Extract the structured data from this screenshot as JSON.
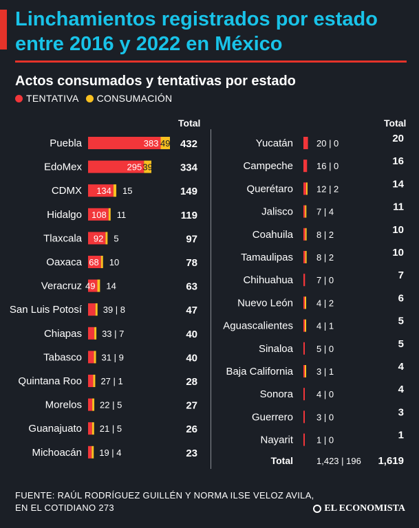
{
  "title": "Linchamientos registrados por estado entre 2016 y 2022 en México",
  "subtitle": "Actos consumados y tentativas por estado",
  "legend": {
    "tentativa": "TENTATIVA",
    "consumacion": "CONSUMACIÓN"
  },
  "colors": {
    "tentativa": "#f2363a",
    "consumacion": "#f9c020",
    "title": "#19c3e8",
    "background": "#1b1f26"
  },
  "total_header": "Total",
  "summary": {
    "label": "Total",
    "tentativa": "1,423",
    "consumacion": "196",
    "total": "1,619"
  },
  "source": {
    "line1": "FUENTE: RAÚL RODRÍGUEZ GUILLÉN Y NORMA ILSE VELOZ AVILA,",
    "line2": "EN  EL COTIDIANO 273"
  },
  "brand": "EL ECONOMISTA",
  "chart_data": {
    "type": "bar",
    "orientation": "horizontal",
    "stacked": true,
    "title": "Actos consumados y tentativas por estado",
    "series_names": [
      "TENTATIVA",
      "CONSUMACIÓN"
    ],
    "left": [
      {
        "state": "Puebla",
        "tentativa": 383,
        "consumacion": 49,
        "total": 432
      },
      {
        "state": "EdoMex",
        "tentativa": 295,
        "consumacion": 39,
        "total": 334
      },
      {
        "state": "CDMX",
        "tentativa": 134,
        "consumacion": 15,
        "total": 149
      },
      {
        "state": "Hidalgo",
        "tentativa": 108,
        "consumacion": 11,
        "total": 119
      },
      {
        "state": "Tlaxcala",
        "tentativa": 92,
        "consumacion": 5,
        "total": 97
      },
      {
        "state": "Oaxaca",
        "tentativa": 68,
        "consumacion": 10,
        "total": 78
      },
      {
        "state": "Veracruz",
        "tentativa": 49,
        "consumacion": 14,
        "total": 63
      },
      {
        "state": "San Luis Potosí",
        "tentativa": 39,
        "consumacion": 8,
        "total": 47
      },
      {
        "state": "Chiapas",
        "tentativa": 33,
        "consumacion": 7,
        "total": 40
      },
      {
        "state": "Tabasco",
        "tentativa": 31,
        "consumacion": 9,
        "total": 40
      },
      {
        "state": "Quintana Roo",
        "tentativa": 27,
        "consumacion": 1,
        "total": 28
      },
      {
        "state": "Morelos",
        "tentativa": 22,
        "consumacion": 5,
        "total": 27
      },
      {
        "state": "Guanajuato",
        "tentativa": 21,
        "consumacion": 5,
        "total": 26
      },
      {
        "state": "Michoacán",
        "tentativa": 19,
        "consumacion": 4,
        "total": 23
      }
    ],
    "right": [
      {
        "state": "Yucatán",
        "tentativa": 20,
        "consumacion": 0,
        "total": 20
      },
      {
        "state": "Campeche",
        "tentativa": 16,
        "consumacion": 0,
        "total": 16
      },
      {
        "state": "Querétaro",
        "tentativa": 12,
        "consumacion": 2,
        "total": 14
      },
      {
        "state": "Jalisco",
        "tentativa": 7,
        "consumacion": 4,
        "total": 11
      },
      {
        "state": "Coahuila",
        "tentativa": 8,
        "consumacion": 2,
        "total": 10
      },
      {
        "state": "Tamaulipas",
        "tentativa": 8,
        "consumacion": 2,
        "total": 10
      },
      {
        "state": "Chihuahua",
        "tentativa": 7,
        "consumacion": 0,
        "total": 7
      },
      {
        "state": "Nuevo León",
        "tentativa": 4,
        "consumacion": 2,
        "total": 6
      },
      {
        "state": "Aguascalientes",
        "tentativa": 4,
        "consumacion": 1,
        "total": 5
      },
      {
        "state": "Sinaloa",
        "tentativa": 5,
        "consumacion": 0,
        "total": 5
      },
      {
        "state": "Baja California",
        "tentativa": 3,
        "consumacion": 1,
        "total": 4
      },
      {
        "state": "Sonora",
        "tentativa": 4,
        "consumacion": 0,
        "total": 4
      },
      {
        "state": "Guerrero",
        "tentativa": 3,
        "consumacion": 0,
        "total": 3
      },
      {
        "state": "Nayarit",
        "tentativa": 1,
        "consumacion": 0,
        "total": 1
      }
    ]
  }
}
